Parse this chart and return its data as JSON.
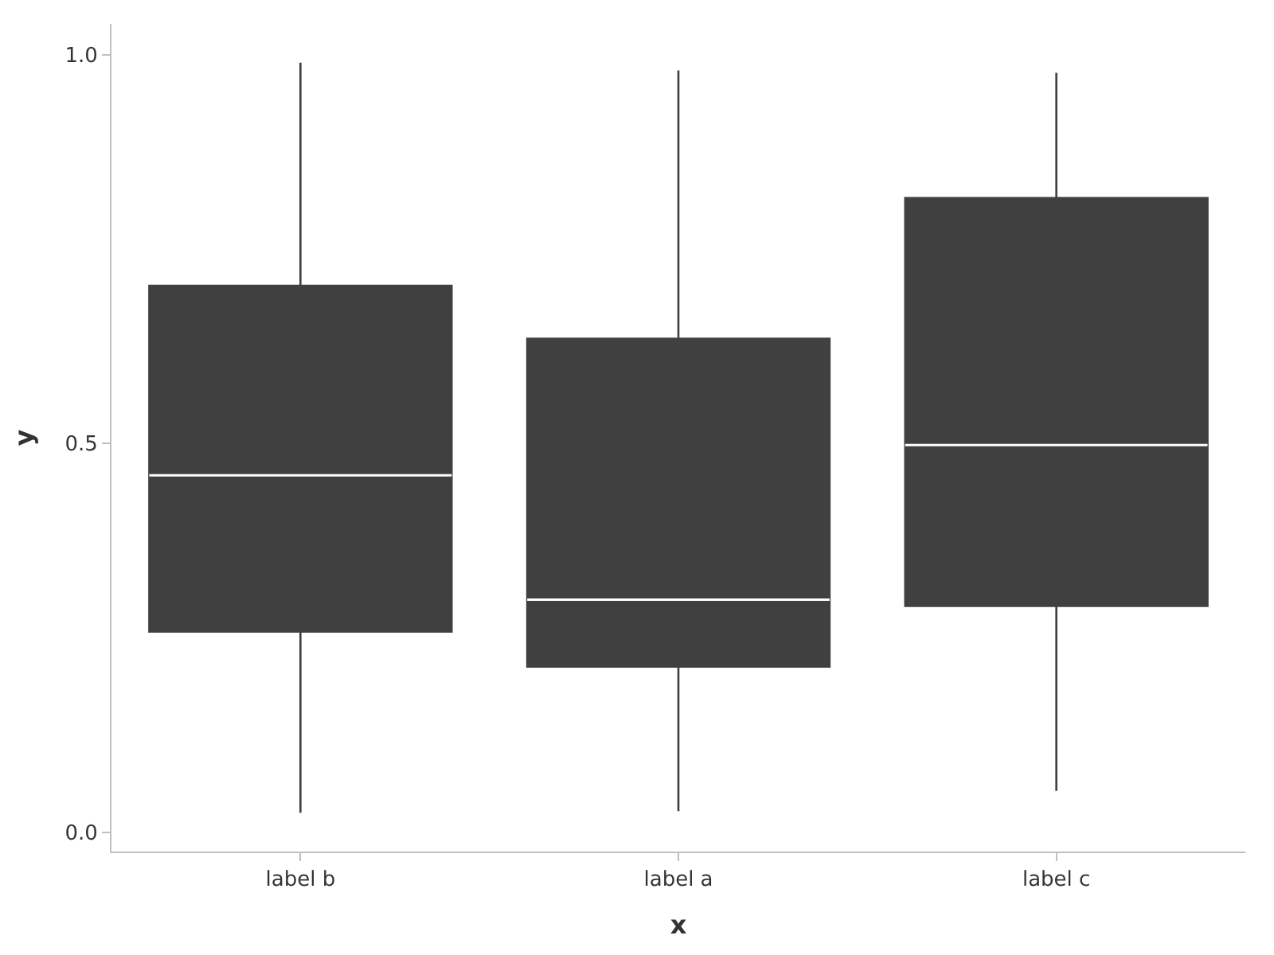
{
  "chart_data": {
    "type": "box",
    "xlabel": "x",
    "ylabel": "y",
    "categories": [
      "label b",
      "label a",
      "label c"
    ],
    "boxes": [
      {
        "low": 0.025,
        "q1": 0.258,
        "median": 0.459,
        "q3": 0.703,
        "high": 0.99
      },
      {
        "low": 0.027,
        "q1": 0.213,
        "median": 0.299,
        "q3": 0.635,
        "high": 0.98
      },
      {
        "low": 0.053,
        "q1": 0.291,
        "median": 0.498,
        "q3": 0.816,
        "high": 0.977
      }
    ],
    "color": "#404040",
    "ylim": [
      -0.025,
      1.04
    ],
    "yticks": [
      {
        "value": 0,
        "label": "0.0"
      },
      0.5,
      {
        "value": 1,
        "label": "1.0"
      }
    ]
  }
}
